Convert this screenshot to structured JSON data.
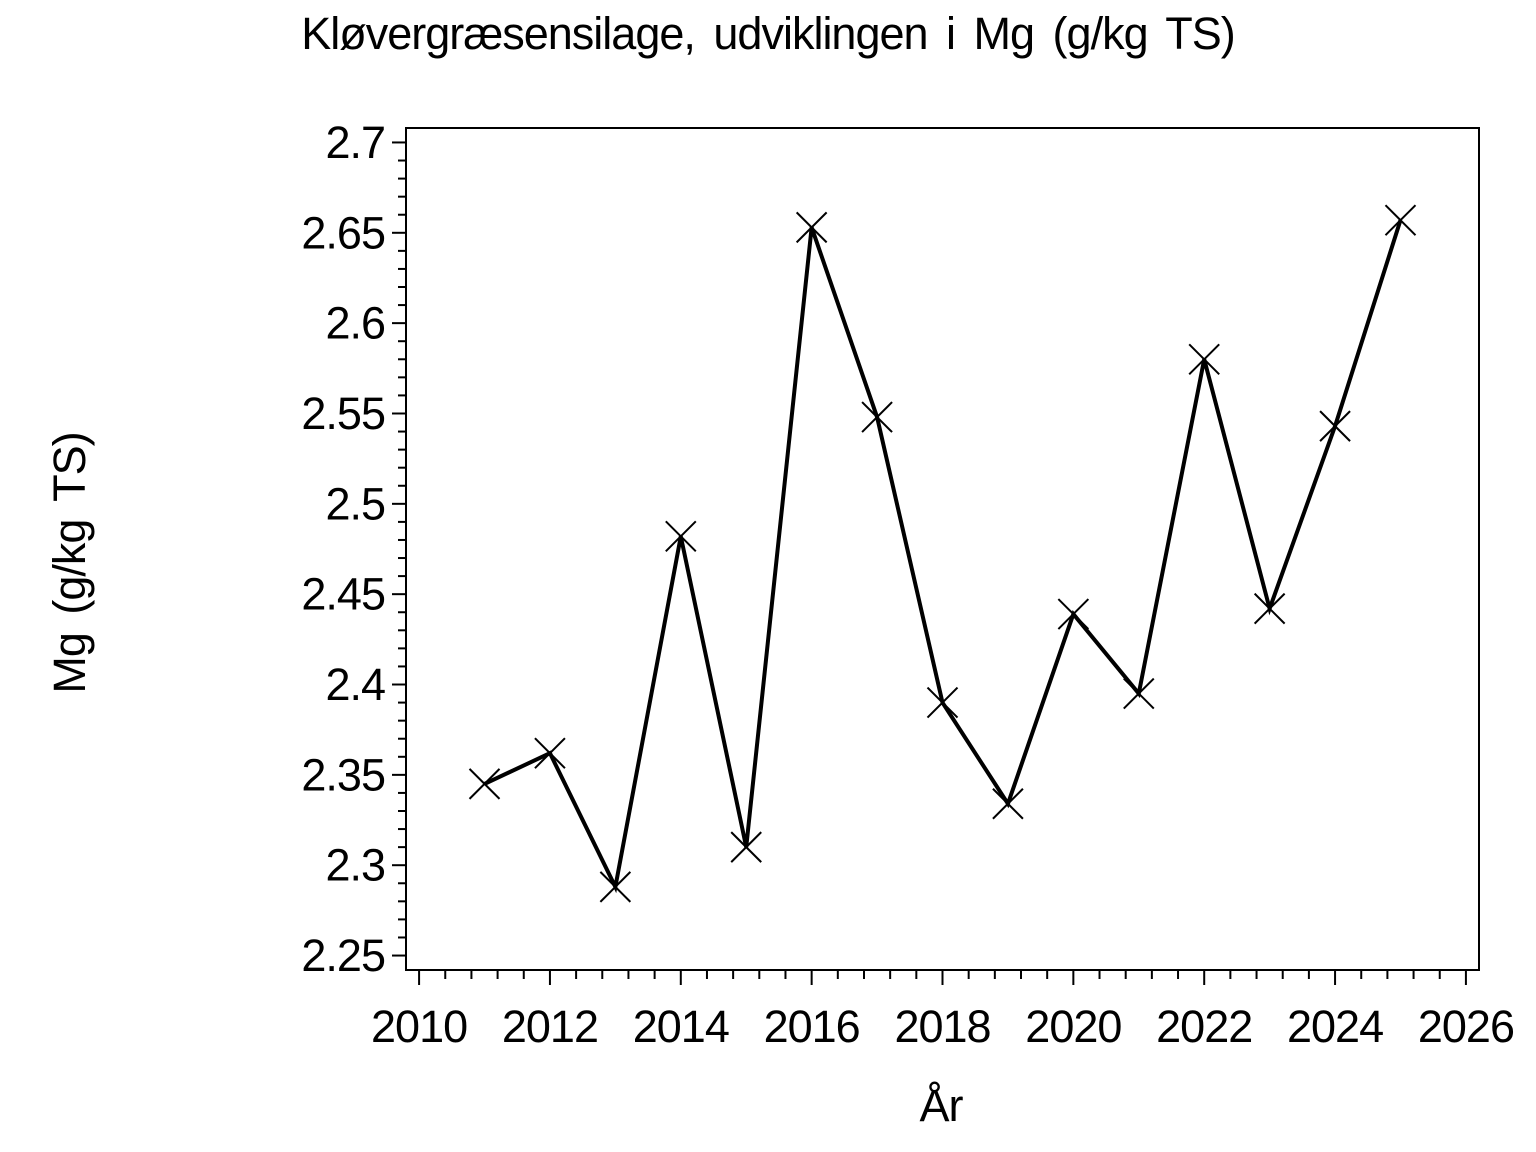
{
  "page": {
    "background_color": "#ffffff",
    "foreground_color": "#000000"
  },
  "chart_data": {
    "type": "line",
    "title": "Kløvergræsensilage, udviklingen i Mg (g/kg TS)",
    "xlabel": "År",
    "ylabel": "Mg (g/kg TS)",
    "x": [
      2011,
      2012,
      2013,
      2014,
      2015,
      2016,
      2017,
      2018,
      2019,
      2020,
      2021,
      2022,
      2023,
      2024,
      2025
    ],
    "series": [
      {
        "name": "Mg (g/kg TS)",
        "values": [
          2.345,
          2.362,
          2.288,
          2.482,
          2.31,
          2.653,
          2.548,
          2.39,
          2.334,
          2.439,
          2.395,
          2.58,
          2.442,
          2.543,
          2.657
        ]
      }
    ],
    "marker": "x-cross",
    "line_color": "#000000",
    "marker_color": "#000000",
    "grid": false,
    "legend_position": "none",
    "xlim": [
      2009.8,
      2026.2
    ],
    "ylim": [
      2.242,
      2.708
    ],
    "x_major_ticks": [
      2010,
      2012,
      2014,
      2016,
      2018,
      2020,
      2022,
      2024,
      2026
    ],
    "x_tick_labels": [
      "2010",
      "2012",
      "2014",
      "2016",
      "2018",
      "2020",
      "2022",
      "2024",
      "2026"
    ],
    "x_minor_tick_start": 2010,
    "x_minor_tick_end": 2026,
    "x_minor_step": 0.4,
    "y_major_ticks": [
      2.25,
      2.3,
      2.35,
      2.4,
      2.45,
      2.5,
      2.55,
      2.6,
      2.65,
      2.7
    ],
    "y_tick_labels": [
      "2.25",
      "2.3",
      "2.35",
      "2.4",
      "2.45",
      "2.5",
      "2.55",
      "2.6",
      "2.65",
      "2.7"
    ],
    "y_minor_tick_start": 2.25,
    "y_minor_tick_end": 2.7,
    "y_minor_step": 0.01
  }
}
